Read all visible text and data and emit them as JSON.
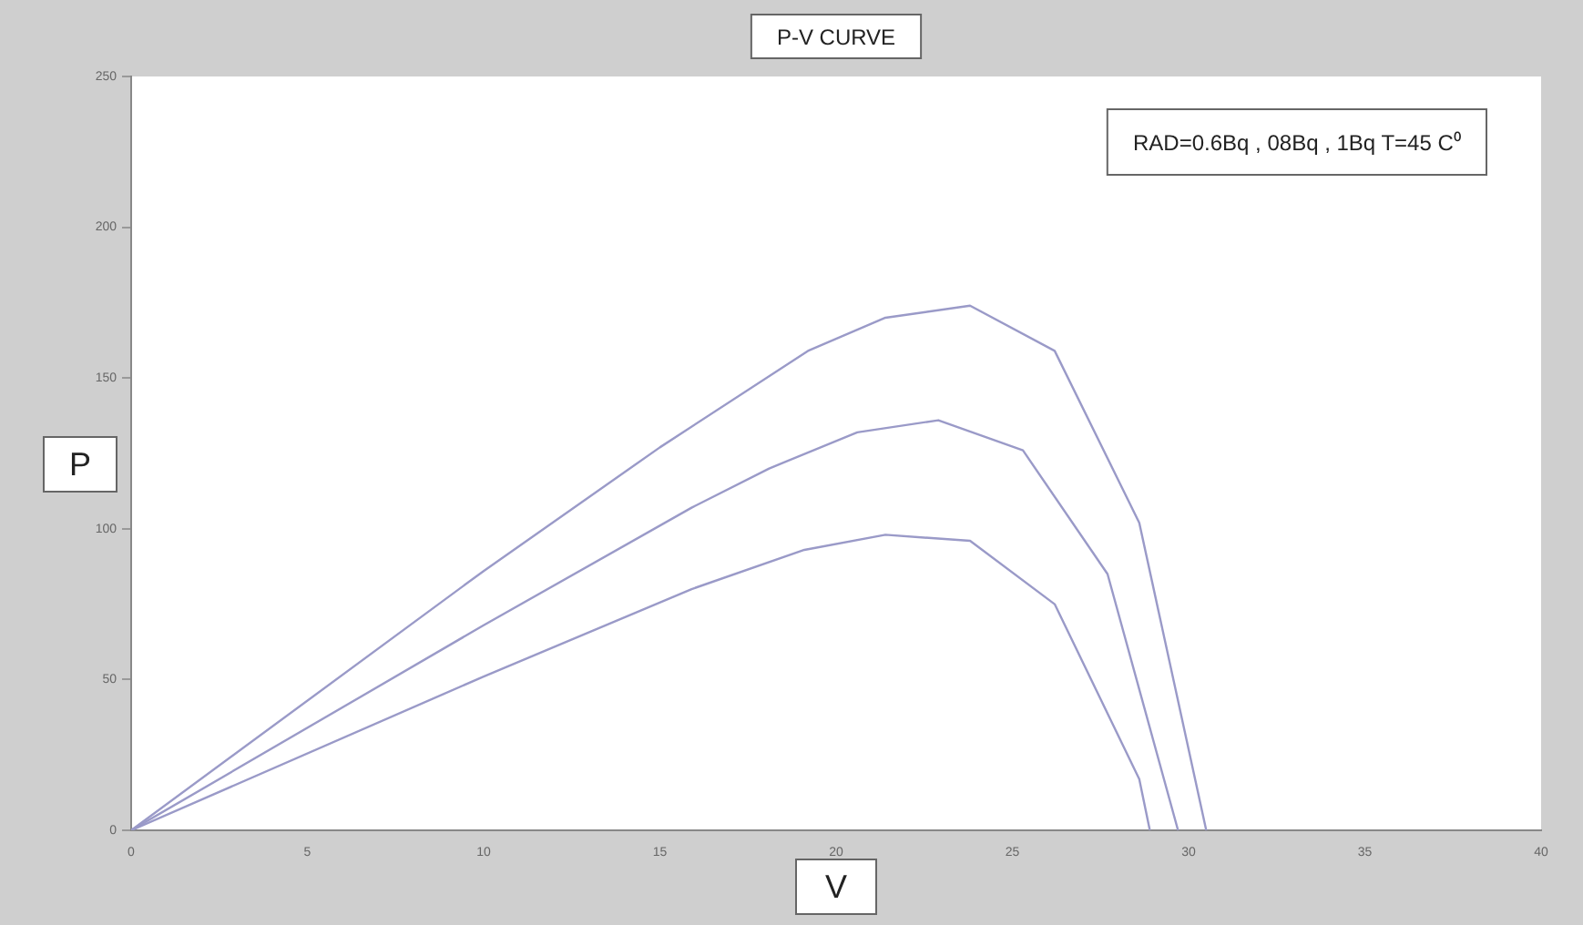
{
  "chart_data": {
    "type": "line",
    "title": "P-V CURVE",
    "xlabel": "V",
    "ylabel": "P",
    "annotations": [
      "RAD=0.6Bq , 08Bq , 1Bq T=45 C⁰"
    ],
    "xlim": [
      0,
      40
    ],
    "xticks": [
      0,
      5,
      10,
      15,
      20,
      25,
      30,
      35,
      40
    ],
    "ylim": [
      0,
      250
    ],
    "yticks": [
      0,
      50,
      100,
      150,
      200,
      250
    ],
    "grid": false,
    "legend": false,
    "marker": "none",
    "line_style": "solid",
    "series": [
      {
        "color": "#9a9ac8",
        "x": [
          0,
          10,
          15,
          19.2,
          21.4,
          23.8,
          26.2,
          28.6,
          30.5
        ],
        "values": [
          0,
          86,
          127,
          159,
          170,
          174,
          159,
          102,
          0
        ]
      },
      {
        "color": "#9a9ac8",
        "x": [
          0,
          10,
          15.9,
          18.1,
          20.6,
          22.9,
          25.3,
          27.7,
          29.7
        ],
        "values": [
          0,
          68,
          107,
          120,
          132,
          136,
          126,
          85,
          0
        ]
      },
      {
        "color": "#9a9ac8",
        "x": [
          0,
          10,
          15.9,
          19.1,
          21.4,
          23.8,
          26.2,
          28.6,
          28.9
        ],
        "values": [
          0,
          51,
          80,
          93,
          98,
          96,
          75,
          17,
          0
        ]
      }
    ]
  }
}
